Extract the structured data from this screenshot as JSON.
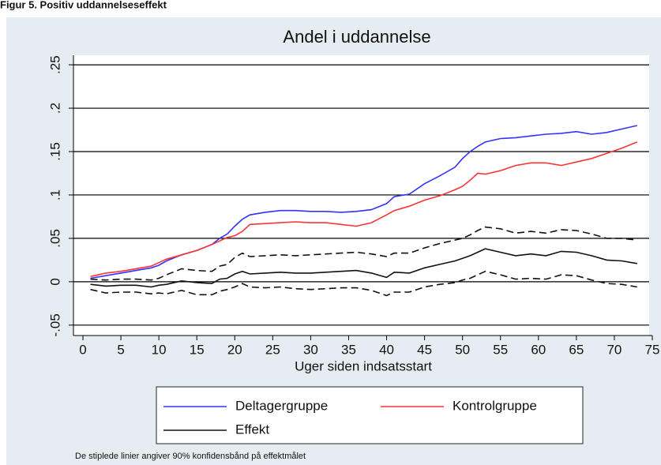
{
  "header": "Figur 5. Positiv uddannelseseffekt",
  "footnote": "De stiplede linier angiver 90% konfidensbånd på effektmålet",
  "chart_data": {
    "type": "line",
    "title": "Andel i uddannelse",
    "x_label": "Uger siden indsatsstart",
    "x": [
      1,
      3,
      5,
      7,
      9,
      10,
      11,
      13,
      15,
      17,
      18,
      19,
      20,
      21,
      22,
      24,
      26,
      28,
      30,
      32,
      34,
      36,
      38,
      40,
      41,
      43,
      45,
      47,
      49,
      50,
      51,
      52,
      53,
      55,
      57,
      59,
      61,
      63,
      65,
      67,
      69,
      71,
      73
    ],
    "series": [
      {
        "name": "Deltagergruppe",
        "color": "#3333ff",
        "values": [
          0.004,
          0.007,
          0.01,
          0.013,
          0.016,
          0.019,
          0.024,
          0.031,
          0.036,
          0.043,
          0.05,
          0.055,
          0.064,
          0.072,
          0.077,
          0.08,
          0.082,
          0.082,
          0.081,
          0.081,
          0.08,
          0.081,
          0.083,
          0.09,
          0.098,
          0.101,
          0.113,
          0.122,
          0.132,
          0.142,
          0.15,
          0.156,
          0.161,
          0.165,
          0.166,
          0.168,
          0.17,
          0.171,
          0.173,
          0.17,
          0.172,
          0.176,
          0.18
        ]
      },
      {
        "name": "Kontrolgruppe",
        "color": "#ff3333",
        "values": [
          0.006,
          0.01,
          0.012,
          0.015,
          0.018,
          0.022,
          0.026,
          0.031,
          0.036,
          0.043,
          0.047,
          0.051,
          0.053,
          0.058,
          0.066,
          0.067,
          0.068,
          0.069,
          0.068,
          0.068,
          0.066,
          0.064,
          0.068,
          0.077,
          0.082,
          0.087,
          0.094,
          0.099,
          0.106,
          0.11,
          0.117,
          0.125,
          0.124,
          0.128,
          0.134,
          0.137,
          0.137,
          0.134,
          0.138,
          0.142,
          0.148,
          0.154,
          0.161
        ]
      },
      {
        "name": "Effekt",
        "color": "#111111",
        "values": [
          -0.003,
          -0.005,
          -0.004,
          -0.004,
          -0.006,
          -0.004,
          -0.003,
          0.001,
          -0.001,
          -0.002,
          0.003,
          0.004,
          0.009,
          0.012,
          0.009,
          0.01,
          0.011,
          0.01,
          0.01,
          0.011,
          0.012,
          0.013,
          0.01,
          0.005,
          0.011,
          0.01,
          0.016,
          0.02,
          0.024,
          0.027,
          0.03,
          0.034,
          0.038,
          0.034,
          0.03,
          0.032,
          0.03,
          0.035,
          0.034,
          0.03,
          0.025,
          0.024,
          0.021
        ]
      }
    ],
    "bands": {
      "color": "#111111",
      "dashed": true,
      "upper": [
        0.003,
        0.002,
        0.003,
        0.003,
        0.002,
        0.004,
        0.008,
        0.015,
        0.013,
        0.012,
        0.018,
        0.02,
        0.028,
        0.033,
        0.029,
        0.03,
        0.031,
        0.03,
        0.031,
        0.032,
        0.033,
        0.034,
        0.032,
        0.029,
        0.033,
        0.033,
        0.039,
        0.044,
        0.048,
        0.05,
        0.054,
        0.059,
        0.063,
        0.061,
        0.056,
        0.058,
        0.056,
        0.06,
        0.059,
        0.055,
        0.05,
        0.05,
        0.048
      ],
      "lower": [
        -0.009,
        -0.013,
        -0.012,
        -0.012,
        -0.014,
        -0.013,
        -0.014,
        -0.01,
        -0.015,
        -0.015,
        -0.011,
        -0.009,
        -0.006,
        -0.002,
        -0.006,
        -0.007,
        -0.006,
        -0.008,
        -0.009,
        -0.008,
        -0.007,
        -0.007,
        -0.01,
        -0.016,
        -0.012,
        -0.012,
        -0.006,
        -0.003,
        -0.001,
        0.002,
        0.004,
        0.008,
        0.012,
        0.008,
        0.003,
        0.004,
        0.003,
        0.008,
        0.007,
        0.002,
        -0.002,
        -0.003,
        -0.006
      ]
    },
    "xlim": [
      -1.25,
      75
    ],
    "xticks": [
      0,
      5,
      10,
      15,
      20,
      25,
      30,
      35,
      40,
      45,
      50,
      55,
      60,
      65,
      70,
      75
    ],
    "ylim": [
      -0.062,
      0.261
    ],
    "yticks": [
      {
        "value": -0.05,
        "label": "-.05"
      },
      0,
      {
        "value": 0.05,
        "label": ".05"
      },
      {
        "value": 0.1,
        "label": ".1"
      },
      {
        "value": 0.15,
        "label": ".15"
      },
      {
        "value": 0.2,
        "label": ".2"
      },
      {
        "value": 0.25,
        "label": ".25"
      }
    ],
    "grid": true,
    "legend": "bottom"
  }
}
